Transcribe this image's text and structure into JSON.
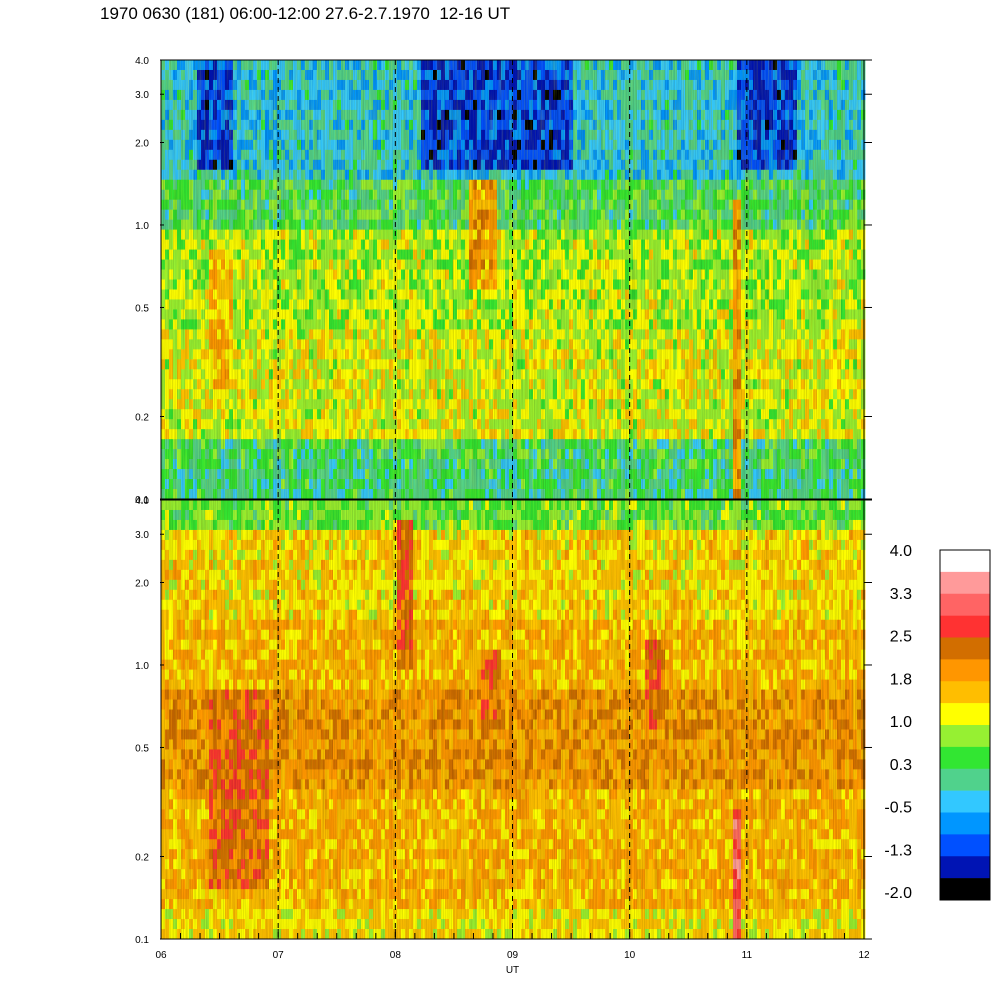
{
  "title": "1970 0630 (181) 06:00-12:00 27.6-2.7.1970  12-16 UT",
  "colorbar": {
    "labels": [
      "4.0",
      "3.3",
      "2.5",
      "1.8",
      "1.0",
      "0.3",
      "-0.5",
      "-1.3",
      "-2.0"
    ],
    "colors": [
      "#ffffff",
      "#ff9a9a",
      "#ff6464",
      "#ff3232",
      "#d26e00",
      "#ff9600",
      "#ffbe00",
      "#ffff00",
      "#96f032",
      "#32e632",
      "#50d28c",
      "#32c8ff",
      "#0096ff",
      "#0050ff",
      "#0014b4",
      "#000000"
    ]
  },
  "chart_data": [
    {
      "type": "heatmap",
      "panel": "upper",
      "x": [
        "06",
        "07",
        "08",
        "09",
        "10",
        "11",
        "12"
      ],
      "xlim": [
        6,
        12
      ],
      "y_ticks": [
        "0.1",
        "0.2",
        "0.5",
        "1.0",
        "2.0",
        "3.0",
        "4.0"
      ],
      "ylim": [
        0.1,
        4.0
      ],
      "yscale": "log",
      "vertical_dashed_lines": [
        7,
        8,
        9,
        10,
        11
      ],
      "value_range": [
        -2.0,
        4.0
      ],
      "dominant_values": "0.3 to 1.0 (green/yellow), low values -1.3 to -0.5 near 2-3 above 08-09 and 11, orange ~1.8 near 1.0 at 08:40 and band at 10:50"
    },
    {
      "type": "heatmap",
      "panel": "lower",
      "x": [
        "06",
        "07",
        "08",
        "09",
        "10",
        "11",
        "12"
      ],
      "xlim": [
        6,
        12
      ],
      "xlabel": "UT",
      "y_ticks": [
        "0.1",
        "0.2",
        "0.5",
        "1.0",
        "2.0",
        "3.0",
        "4.0"
      ],
      "ylim": [
        0.1,
        4.0
      ],
      "yscale": "log",
      "vertical_dashed_lines": [
        7,
        8,
        9,
        10,
        11
      ],
      "value_range": [
        -2.0,
        4.0
      ],
      "dominant_values": "1.0 to 2.5 (yellow/orange/dark orange), red ~3.3 band near 10:50 below 0.3"
    }
  ],
  "axes": {
    "x_tick_labels": [
      "06",
      "07",
      "08",
      "09",
      "10",
      "11",
      "12"
    ],
    "xlabel": "UT",
    "y_tick_labels": [
      "0.1",
      "0.2",
      "0.5",
      "1.0",
      "2.0",
      "3.0",
      "4.0"
    ]
  }
}
